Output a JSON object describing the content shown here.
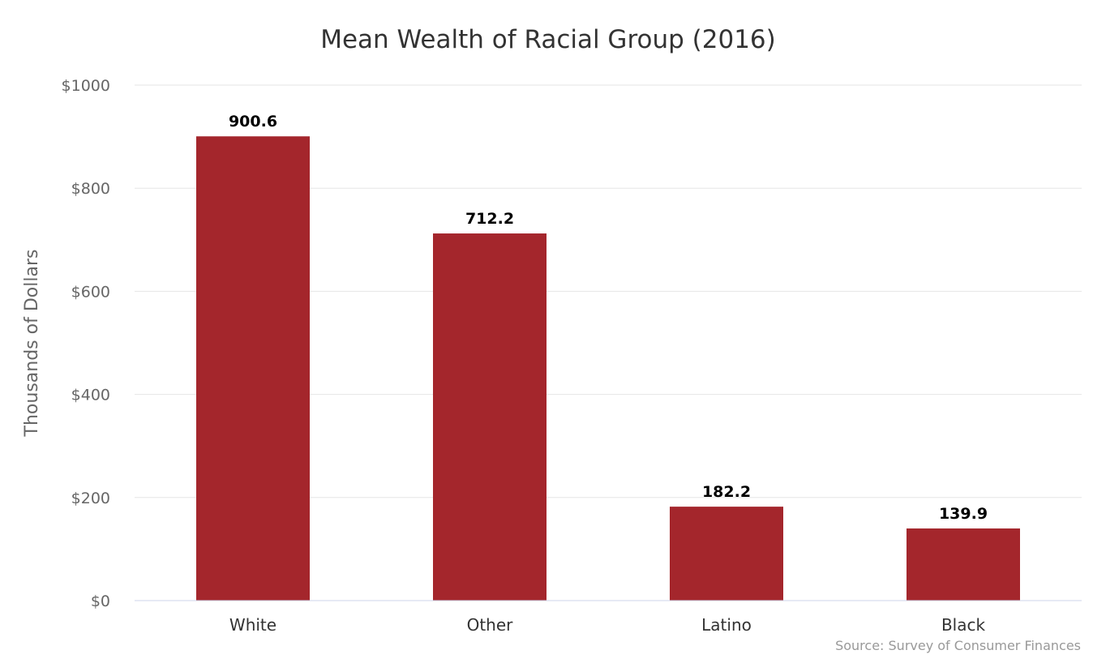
{
  "chart_data": {
    "type": "bar",
    "title": "Mean Wealth of Racial Group (2016)",
    "ylabel": "Thousands of Dollars",
    "xlabel": "",
    "categories": [
      "White",
      "Other",
      "Latino",
      "Black"
    ],
    "values": [
      900.6,
      712.2,
      182.2,
      139.9
    ],
    "data_labels": [
      "900.6",
      "712.2",
      "182.2",
      "139.9"
    ],
    "ylim": [
      0,
      1000
    ],
    "yticks": [
      0,
      200,
      400,
      600,
      800,
      1000
    ],
    "ytick_labels": [
      "$0",
      "$200",
      "$400",
      "$600",
      "$800",
      "$1000"
    ],
    "grid": true,
    "legend": "none",
    "bar_color": "#a4262c",
    "credit": "Source: Survey of Consumer Finances"
  }
}
